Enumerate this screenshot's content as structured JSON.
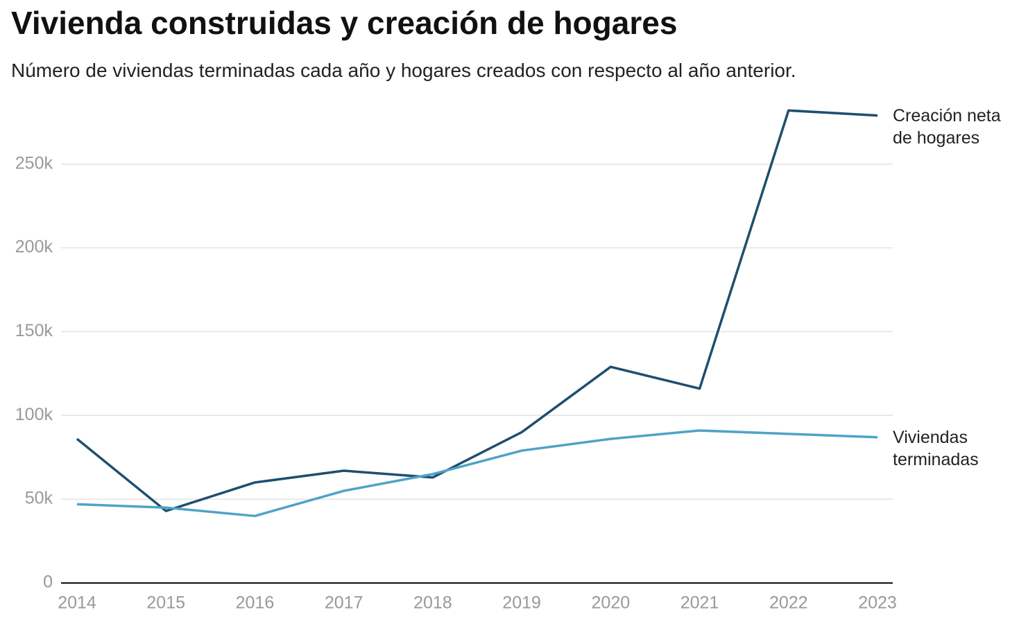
{
  "chart_data": {
    "type": "line",
    "title": "Vivienda construidas y creación de hogares",
    "subtitle": "Número de viviendas terminadas cada año y hogares creados con respecto al año anterior.",
    "x": [
      2014,
      2015,
      2016,
      2017,
      2018,
      2019,
      2020,
      2021,
      2022,
      2023
    ],
    "xlim": [
      2014,
      2023
    ],
    "xticks": [
      2014,
      2015,
      2016,
      2017,
      2018,
      2019,
      2020,
      2021,
      2022,
      2023
    ],
    "ylim": [
      0,
      290000
    ],
    "yticks": [
      0,
      {
        "value": 50000,
        "label": "50k"
      },
      {
        "value": 100000,
        "label": "100k"
      },
      {
        "value": 150000,
        "label": "150k"
      },
      {
        "value": 200000,
        "label": "200k"
      },
      {
        "value": 250000,
        "label": "250k"
      }
    ],
    "grid": true,
    "series": [
      {
        "name": "Creación neta de hogares",
        "color": "#1f4e6e",
        "values": [
          86000,
          43000,
          60000,
          67000,
          63000,
          90000,
          129000,
          116000,
          282000,
          279000
        ]
      },
      {
        "name": "Viviendas terminadas",
        "color": "#4fa3c7",
        "values": [
          47000,
          45000,
          40000,
          55000,
          65000,
          79000,
          86000,
          91000,
          89000,
          87000
        ]
      }
    ]
  }
}
